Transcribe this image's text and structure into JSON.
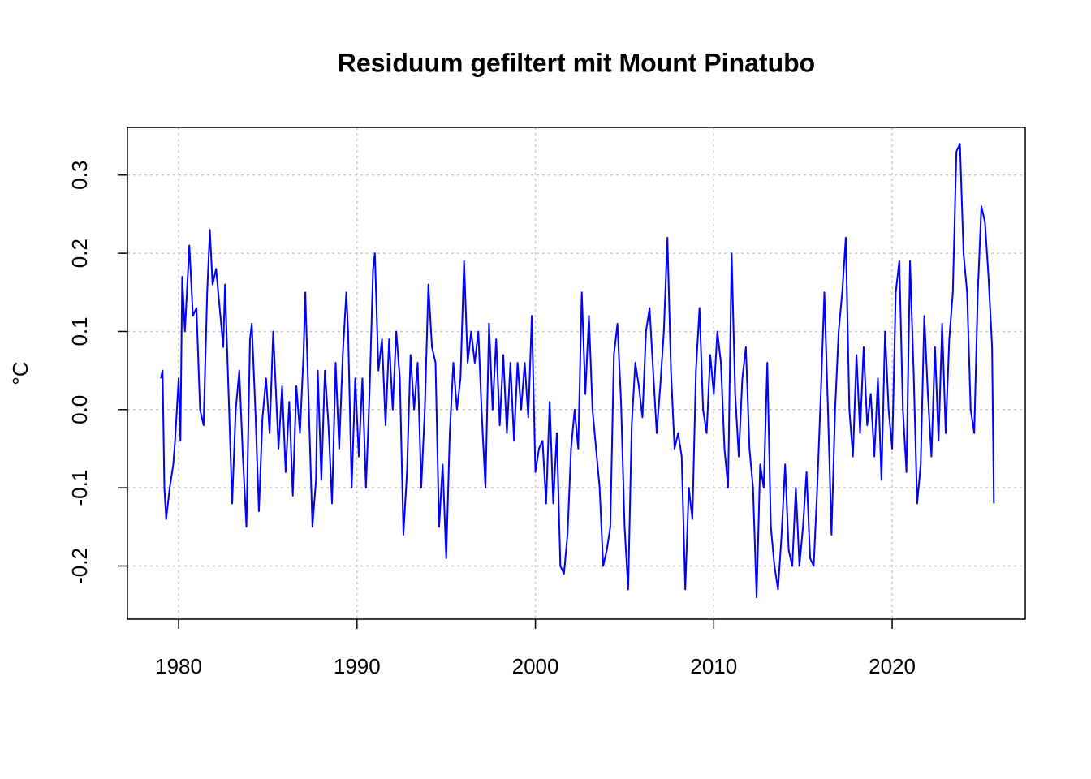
{
  "chart_data": {
    "type": "line",
    "title": "Residuum gefiltert mit Mount Pinatubo",
    "ylabel": "°C",
    "xlim": [
      1977.13,
      2027.46
    ],
    "ylim": [
      -0.268,
      0.361
    ],
    "xticks": [
      1980,
      1990,
      2000,
      2010,
      2020
    ],
    "yticks": [
      -0.2,
      -0.1,
      {
        "value": 0,
        "label": "0.0"
      },
      0.1,
      0.2,
      0.3
    ],
    "grid": true,
    "series": [
      {
        "color": "#0000ff",
        "x": [
          1979.0,
          1979.1,
          1979.2,
          1979.3,
          1979.5,
          1979.7,
          1979.8,
          1980.0,
          1980.1,
          1980.2,
          1980.35,
          1980.6,
          1980.8,
          1981.0,
          1981.2,
          1981.4,
          1981.6,
          1981.75,
          1981.9,
          1982.1,
          1982.3,
          1982.5,
          1982.6,
          1982.8,
          1983.0,
          1983.2,
          1983.4,
          1983.6,
          1983.8,
          1984.0,
          1984.1,
          1984.3,
          1984.5,
          1984.7,
          1984.9,
          1985.1,
          1985.3,
          1985.5,
          1985.6,
          1985.8,
          1986.0,
          1986.2,
          1986.4,
          1986.6,
          1986.8,
          1987.0,
          1987.1,
          1987.3,
          1987.5,
          1987.7,
          1987.8,
          1988.0,
          1988.2,
          1988.4,
          1988.6,
          1988.8,
          1989.0,
          1989.2,
          1989.4,
          1989.5,
          1989.7,
          1989.9,
          1990.1,
          1990.3,
          1990.5,
          1990.7,
          1990.9,
          1991.0,
          1991.2,
          1991.4,
          1991.6,
          1991.8,
          1992.0,
          1992.2,
          1992.4,
          1992.6,
          1992.8,
          1993.0,
          1993.2,
          1993.4,
          1993.6,
          1993.8,
          1994.0,
          1994.2,
          1994.4,
          1994.6,
          1994.8,
          1995.0,
          1995.2,
          1995.4,
          1995.6,
          1995.8,
          1996.0,
          1996.2,
          1996.4,
          1996.6,
          1996.8,
          1997.0,
          1997.2,
          1997.4,
          1997.6,
          1997.8,
          1998.0,
          1998.2,
          1998.4,
          1998.6,
          1998.8,
          1999.0,
          1999.2,
          1999.4,
          1999.6,
          1999.8,
          2000.0,
          2000.2,
          2000.4,
          2000.6,
          2000.8,
          2001.0,
          2001.2,
          2001.4,
          2001.6,
          2001.8,
          2002.0,
          2002.2,
          2002.4,
          2002.6,
          2002.8,
          2003.0,
          2003.2,
          2003.4,
          2003.6,
          2003.8,
          2004.0,
          2004.2,
          2004.4,
          2004.6,
          2004.8,
          2005.0,
          2005.2,
          2005.4,
          2005.6,
          2005.8,
          2006.0,
          2006.2,
          2006.4,
          2006.6,
          2006.8,
          2007.0,
          2007.2,
          2007.4,
          2007.6,
          2007.8,
          2008.0,
          2008.2,
          2008.4,
          2008.6,
          2008.8,
          2009.0,
          2009.2,
          2009.4,
          2009.6,
          2009.8,
          2010.0,
          2010.2,
          2010.4,
          2010.6,
          2010.8,
          2011.0,
          2011.2,
          2011.4,
          2011.6,
          2011.8,
          2012.0,
          2012.2,
          2012.4,
          2012.6,
          2012.8,
          2013.0,
          2013.2,
          2013.4,
          2013.6,
          2013.8,
          2014.0,
          2014.2,
          2014.4,
          2014.6,
          2014.8,
          2015.0,
          2015.2,
          2015.4,
          2015.6,
          2015.8,
          2016.0,
          2016.2,
          2016.4,
          2016.6,
          2016.8,
          2017.0,
          2017.2,
          2017.4,
          2017.6,
          2017.8,
          2018.0,
          2018.2,
          2018.4,
          2018.6,
          2018.8,
          2019.0,
          2019.2,
          2019.4,
          2019.6,
          2019.8,
          2020.0,
          2020.2,
          2020.4,
          2020.6,
          2020.8,
          2021.0,
          2021.2,
          2021.4,
          2021.6,
          2021.8,
          2022.0,
          2022.2,
          2022.4,
          2022.6,
          2022.8,
          2023.0,
          2023.2,
          2023.4,
          2023.6,
          2023.8,
          2024.0,
          2024.2,
          2024.4,
          2024.6,
          2024.8,
          2025.0,
          2025.2,
          2025.4,
          2025.6,
          2025.7
        ],
        "values": [
          0.04,
          0.05,
          -0.1,
          -0.14,
          -0.1,
          -0.07,
          -0.04,
          0.04,
          -0.04,
          0.17,
          0.1,
          0.21,
          0.12,
          0.13,
          0.0,
          -0.02,
          0.15,
          0.23,
          0.16,
          0.18,
          0.13,
          0.08,
          0.16,
          0.02,
          -0.12,
          0.0,
          0.05,
          -0.06,
          -0.15,
          0.09,
          0.11,
          0.0,
          -0.13,
          -0.01,
          0.04,
          -0.03,
          0.1,
          0.0,
          -0.05,
          0.03,
          -0.08,
          0.01,
          -0.11,
          0.03,
          -0.03,
          0.07,
          0.15,
          0.0,
          -0.15,
          -0.09,
          0.05,
          -0.09,
          0.05,
          -0.02,
          -0.12,
          0.06,
          -0.05,
          0.07,
          0.15,
          0.1,
          -0.1,
          0.04,
          -0.06,
          0.04,
          -0.1,
          0.02,
          0.18,
          0.2,
          0.05,
          0.09,
          -0.02,
          0.09,
          0.0,
          0.1,
          0.04,
          -0.16,
          -0.08,
          0.07,
          0.0,
          0.06,
          -0.1,
          0.0,
          0.16,
          0.08,
          0.06,
          -0.15,
          -0.07,
          -0.19,
          -0.03,
          0.06,
          0.0,
          0.04,
          0.19,
          0.06,
          0.1,
          0.06,
          0.1,
          -0.01,
          -0.1,
          0.11,
          0.0,
          0.09,
          -0.02,
          0.07,
          -0.03,
          0.06,
          -0.04,
          0.06,
          0.0,
          0.06,
          -0.01,
          0.12,
          -0.08,
          -0.05,
          -0.04,
          -0.12,
          0.01,
          -0.12,
          -0.03,
          -0.2,
          -0.21,
          -0.16,
          -0.05,
          0.0,
          -0.05,
          0.15,
          0.02,
          0.12,
          0.0,
          -0.05,
          -0.1,
          -0.2,
          -0.18,
          -0.15,
          0.07,
          0.11,
          0.01,
          -0.15,
          -0.23,
          -0.02,
          0.06,
          0.03,
          -0.01,
          0.1,
          0.13,
          0.05,
          -0.03,
          0.03,
          0.1,
          0.22,
          0.05,
          -0.05,
          -0.03,
          -0.06,
          -0.23,
          -0.1,
          -0.14,
          0.05,
          0.13,
          0.0,
          -0.03,
          0.07,
          0.02,
          0.1,
          0.06,
          -0.05,
          -0.1,
          0.2,
          0.02,
          -0.06,
          0.04,
          0.08,
          -0.05,
          -0.1,
          -0.24,
          -0.07,
          -0.1,
          0.06,
          -0.15,
          -0.2,
          -0.23,
          -0.16,
          -0.07,
          -0.18,
          -0.2,
          -0.1,
          -0.2,
          -0.15,
          -0.08,
          -0.19,
          -0.2,
          -0.1,
          0.02,
          0.15,
          0.0,
          -0.16,
          0.0,
          0.1,
          0.15,
          0.22,
          0.0,
          -0.06,
          0.07,
          -0.03,
          0.08,
          -0.02,
          0.02,
          -0.06,
          0.04,
          -0.09,
          0.1,
          0.0,
          -0.05,
          0.15,
          0.19,
          0.0,
          -0.08,
          0.19,
          0.05,
          -0.12,
          -0.07,
          0.12,
          0.02,
          -0.06,
          0.08,
          -0.04,
          0.11,
          -0.03,
          0.09,
          0.15,
          0.33,
          0.34,
          0.2,
          0.15,
          0.0,
          -0.03,
          0.15,
          0.26,
          0.24,
          0.17,
          0.08,
          -0.12
        ]
      }
    ]
  }
}
